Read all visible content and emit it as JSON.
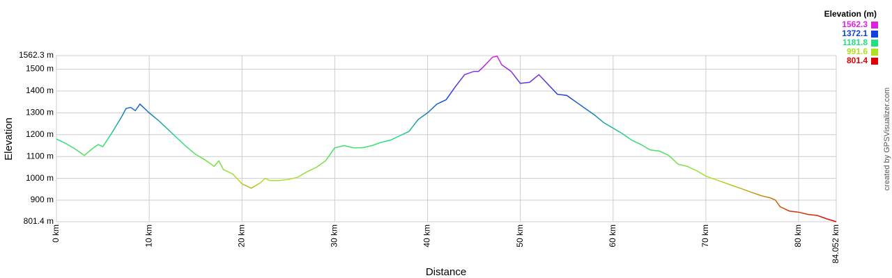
{
  "chart_data": {
    "type": "line",
    "xlabel": "Distance",
    "ylabel": "Elevation",
    "credit": "created by GPSVisualizer.com",
    "xlim": [
      0,
      84.052
    ],
    "ylim": [
      801.4,
      1562.3
    ],
    "xticks": [
      {
        "value": 0,
        "label": "0 km"
      },
      {
        "value": 10,
        "label": "10 km"
      },
      {
        "value": 20,
        "label": "20 km"
      },
      {
        "value": 30,
        "label": "30 km"
      },
      {
        "value": 40,
        "label": "40 km"
      },
      {
        "value": 50,
        "label": "50 km"
      },
      {
        "value": 60,
        "label": "60 km"
      },
      {
        "value": 70,
        "label": "70 km"
      },
      {
        "value": 80,
        "label": "80 km"
      },
      {
        "value": 84.052,
        "label": "84.052 km"
      }
    ],
    "yticks": [
      {
        "value": 801.4,
        "label": "801.4 m"
      },
      {
        "value": 900,
        "label": "900 m"
      },
      {
        "value": 1000,
        "label": "1000 m"
      },
      {
        "value": 1100,
        "label": "1100 m"
      },
      {
        "value": 1200,
        "label": "1200 m"
      },
      {
        "value": 1300,
        "label": "1300 m"
      },
      {
        "value": 1400,
        "label": "1400 m"
      },
      {
        "value": 1500,
        "label": "1500 m"
      },
      {
        "value": 1562.3,
        "label": "1562.3 m"
      }
    ],
    "grid": true,
    "legend": {
      "title": "Elevation (m)",
      "values": [
        1562.3,
        1372.1,
        1181.8,
        991.6,
        801.4
      ],
      "colors": [
        "#e020e0",
        "#1040e0",
        "#20e080",
        "#b0e020",
        "#e00000"
      ]
    },
    "series": [
      {
        "name": "Elevation",
        "x": [
          0,
          1,
          2,
          3,
          4,
          4.5,
          5,
          6,
          7,
          7.5,
          8,
          8.5,
          9,
          10,
          11,
          12,
          13,
          14,
          15,
          16,
          17,
          17.5,
          18,
          19,
          20,
          21,
          22,
          22.5,
          23,
          24,
          25,
          26,
          27,
          28,
          29,
          30,
          31,
          32,
          33,
          34,
          35,
          36,
          37,
          38,
          39,
          40,
          41,
          42,
          43,
          44,
          45,
          45.5,
          46,
          47,
          47.5,
          48,
          49,
          50,
          51,
          52,
          53,
          54,
          55,
          56,
          57,
          58,
          59,
          60,
          61,
          62,
          63,
          64,
          65,
          66,
          67,
          68,
          69,
          70,
          71,
          72,
          73,
          74,
          75,
          76,
          77,
          77.5,
          78,
          79,
          80,
          81,
          82,
          83,
          84.052
        ],
        "values": [
          1180,
          1160,
          1135,
          1105,
          1140,
          1155,
          1145,
          1210,
          1280,
          1320,
          1325,
          1310,
          1340,
          1300,
          1265,
          1225,
          1185,
          1145,
          1110,
          1085,
          1055,
          1080,
          1040,
          1020,
          975,
          955,
          980,
          1000,
          990,
          990,
          995,
          1005,
          1030,
          1050,
          1080,
          1140,
          1150,
          1140,
          1140,
          1150,
          1165,
          1175,
          1195,
          1215,
          1270,
          1300,
          1340,
          1360,
          1420,
          1475,
          1490,
          1490,
          1510,
          1555,
          1560,
          1520,
          1490,
          1435,
          1440,
          1475,
          1430,
          1385,
          1380,
          1350,
          1320,
          1290,
          1255,
          1230,
          1205,
          1175,
          1155,
          1130,
          1125,
          1105,
          1065,
          1055,
          1035,
          1010,
          995,
          980,
          965,
          950,
          935,
          920,
          910,
          900,
          870,
          850,
          845,
          835,
          830,
          815,
          801.4
        ]
      }
    ]
  }
}
